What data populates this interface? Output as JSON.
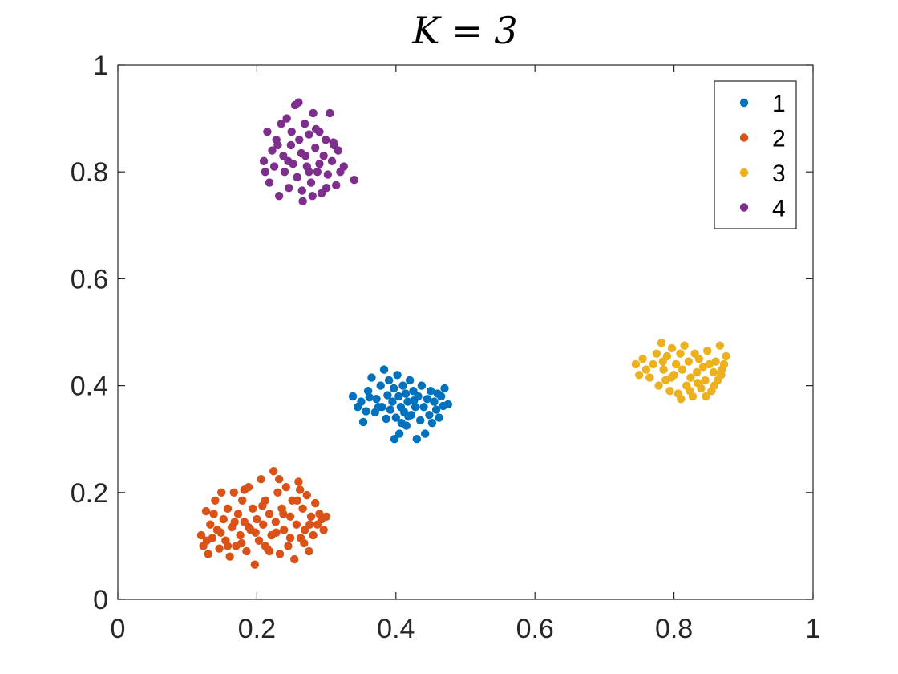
{
  "chart_data": {
    "type": "scatter",
    "title": "K = 3",
    "xlabel": "",
    "ylabel": "",
    "xlim": [
      0,
      1
    ],
    "ylim": [
      0,
      1
    ],
    "x_ticks": [
      "0",
      "0.2",
      "0.4",
      "0.6",
      "0.8",
      "1"
    ],
    "y_ticks": [
      "0",
      "0.2",
      "0.4",
      "0.6",
      "0.8",
      "1"
    ],
    "grid": false,
    "legend_position": "top-right",
    "series": [
      {
        "name": "1",
        "color": "#0072BD",
        "points": [
          [
            0.338,
            0.38
          ],
          [
            0.345,
            0.36
          ],
          [
            0.35,
            0.37
          ],
          [
            0.353,
            0.332
          ],
          [
            0.36,
            0.39
          ],
          [
            0.365,
            0.415
          ],
          [
            0.37,
            0.35
          ],
          [
            0.372,
            0.375
          ],
          [
            0.378,
            0.4
          ],
          [
            0.38,
            0.36
          ],
          [
            0.383,
            0.43
          ],
          [
            0.386,
            0.338
          ],
          [
            0.388,
            0.382
          ],
          [
            0.39,
            0.41
          ],
          [
            0.392,
            0.355
          ],
          [
            0.395,
            0.37
          ],
          [
            0.397,
            0.395
          ],
          [
            0.4,
            0.34
          ],
          [
            0.402,
            0.42
          ],
          [
            0.404,
            0.38
          ],
          [
            0.405,
            0.31
          ],
          [
            0.407,
            0.36
          ],
          [
            0.41,
            0.4
          ],
          [
            0.412,
            0.35
          ],
          [
            0.414,
            0.385
          ],
          [
            0.415,
            0.325
          ],
          [
            0.417,
            0.37
          ],
          [
            0.42,
            0.41
          ],
          [
            0.422,
            0.345
          ],
          [
            0.425,
            0.39
          ],
          [
            0.428,
            0.36
          ],
          [
            0.43,
            0.3
          ],
          [
            0.432,
            0.38
          ],
          [
            0.435,
            0.335
          ],
          [
            0.437,
            0.4
          ],
          [
            0.44,
            0.36
          ],
          [
            0.442,
            0.31
          ],
          [
            0.445,
            0.375
          ],
          [
            0.448,
            0.345
          ],
          [
            0.45,
            0.39
          ],
          [
            0.452,
            0.33
          ],
          [
            0.455,
            0.37
          ],
          [
            0.458,
            0.355
          ],
          [
            0.46,
            0.385
          ],
          [
            0.462,
            0.34
          ],
          [
            0.465,
            0.38
          ],
          [
            0.468,
            0.362
          ],
          [
            0.47,
            0.395
          ],
          [
            0.475,
            0.365
          ],
          [
            0.357,
            0.352
          ],
          [
            0.362,
            0.378
          ],
          [
            0.375,
            0.36
          ],
          [
            0.398,
            0.3
          ],
          [
            0.408,
            0.33
          ],
          [
            0.418,
            0.342
          ],
          [
            0.426,
            0.372
          ]
        ]
      },
      {
        "name": "2",
        "color": "#D95319",
        "points": [
          [
            0.12,
            0.12
          ],
          [
            0.123,
            0.1
          ],
          [
            0.127,
            0.165
          ],
          [
            0.13,
            0.085
          ],
          [
            0.133,
            0.14
          ],
          [
            0.136,
            0.115
          ],
          [
            0.14,
            0.185
          ],
          [
            0.143,
            0.13
          ],
          [
            0.146,
            0.095
          ],
          [
            0.149,
            0.2
          ],
          [
            0.152,
            0.15
          ],
          [
            0.155,
            0.11
          ],
          [
            0.158,
            0.17
          ],
          [
            0.161,
            0.08
          ],
          [
            0.164,
            0.135
          ],
          [
            0.167,
            0.2
          ],
          [
            0.17,
            0.1
          ],
          [
            0.173,
            0.16
          ],
          [
            0.176,
            0.12
          ],
          [
            0.179,
            0.185
          ],
          [
            0.182,
            0.145
          ],
          [
            0.185,
            0.09
          ],
          [
            0.188,
            0.21
          ],
          [
            0.191,
            0.13
          ],
          [
            0.194,
            0.17
          ],
          [
            0.197,
            0.065
          ],
          [
            0.2,
            0.15
          ],
          [
            0.203,
            0.11
          ],
          [
            0.206,
            0.225
          ],
          [
            0.209,
            0.14
          ],
          [
            0.212,
            0.185
          ],
          [
            0.215,
            0.095
          ],
          [
            0.218,
            0.16
          ],
          [
            0.221,
            0.12
          ],
          [
            0.224,
            0.24
          ],
          [
            0.227,
            0.145
          ],
          [
            0.23,
            0.2
          ],
          [
            0.233,
            0.085
          ],
          [
            0.236,
            0.17
          ],
          [
            0.239,
            0.13
          ],
          [
            0.242,
            0.21
          ],
          [
            0.245,
            0.1
          ],
          [
            0.248,
            0.155
          ],
          [
            0.251,
            0.185
          ],
          [
            0.254,
            0.075
          ],
          [
            0.257,
            0.14
          ],
          [
            0.26,
            0.22
          ],
          [
            0.263,
            0.115
          ],
          [
            0.266,
            0.17
          ],
          [
            0.269,
            0.13
          ],
          [
            0.272,
            0.195
          ],
          [
            0.275,
            0.09
          ],
          [
            0.278,
            0.155
          ],
          [
            0.281,
            0.12
          ],
          [
            0.284,
            0.18
          ],
          [
            0.287,
            0.14
          ],
          [
            0.29,
            0.16
          ],
          [
            0.293,
            0.15
          ],
          [
            0.296,
            0.13
          ],
          [
            0.3,
            0.155
          ],
          [
            0.158,
            0.1
          ],
          [
            0.168,
            0.145
          ],
          [
            0.178,
            0.105
          ],
          [
            0.188,
            0.135
          ],
          [
            0.198,
            0.125
          ],
          [
            0.208,
            0.175
          ],
          [
            0.218,
            0.09
          ],
          [
            0.228,
            0.125
          ],
          [
            0.238,
            0.16
          ],
          [
            0.248,
            0.115
          ],
          [
            0.258,
            0.185
          ],
          [
            0.268,
            0.105
          ],
          [
            0.148,
            0.125
          ],
          [
            0.138,
            0.16
          ],
          [
            0.128,
            0.11
          ],
          [
            0.182,
            0.205
          ],
          [
            0.232,
            0.225
          ],
          [
            0.262,
            0.205
          ],
          [
            0.276,
            0.14
          ],
          [
            0.212,
            0.1
          ]
        ]
      },
      {
        "name": "3",
        "color": "#EDB120",
        "points": [
          [
            0.745,
            0.44
          ],
          [
            0.75,
            0.42
          ],
          [
            0.755,
            0.45
          ],
          [
            0.76,
            0.43
          ],
          [
            0.765,
            0.415
          ],
          [
            0.77,
            0.44
          ],
          [
            0.775,
            0.46
          ],
          [
            0.778,
            0.4
          ],
          [
            0.782,
            0.48
          ],
          [
            0.785,
            0.43
          ],
          [
            0.788,
            0.41
          ],
          [
            0.79,
            0.455
          ],
          [
            0.794,
            0.39
          ],
          [
            0.797,
            0.47
          ],
          [
            0.8,
            0.42
          ],
          [
            0.803,
            0.44
          ],
          [
            0.806,
            0.385
          ],
          [
            0.809,
            0.46
          ],
          [
            0.812,
            0.43
          ],
          [
            0.815,
            0.475
          ],
          [
            0.818,
            0.4
          ],
          [
            0.821,
            0.445
          ],
          [
            0.824,
            0.415
          ],
          [
            0.827,
            0.38
          ],
          [
            0.83,
            0.46
          ],
          [
            0.833,
            0.425
          ],
          [
            0.836,
            0.45
          ],
          [
            0.839,
            0.395
          ],
          [
            0.842,
            0.435
          ],
          [
            0.845,
            0.41
          ],
          [
            0.848,
            0.465
          ],
          [
            0.851,
            0.44
          ],
          [
            0.854,
            0.39
          ],
          [
            0.857,
            0.425
          ],
          [
            0.86,
            0.445
          ],
          [
            0.863,
            0.41
          ],
          [
            0.866,
            0.475
          ],
          [
            0.869,
            0.43
          ],
          [
            0.872,
            0.44
          ],
          [
            0.875,
            0.455
          ],
          [
            0.81,
            0.375
          ],
          [
            0.823,
            0.39
          ],
          [
            0.796,
            0.415
          ],
          [
            0.784,
            0.445
          ],
          [
            0.834,
            0.405
          ],
          [
            0.858,
            0.4
          ],
          [
            0.846,
            0.38
          ],
          [
            0.868,
            0.42
          ]
        ]
      },
      {
        "name": "4",
        "color": "#7E2F8E",
        "points": [
          [
            0.21,
            0.82
          ],
          [
            0.212,
            0.8
          ],
          [
            0.215,
            0.875
          ],
          [
            0.218,
            0.78
          ],
          [
            0.222,
            0.84
          ],
          [
            0.225,
            0.81
          ],
          [
            0.228,
            0.86
          ],
          [
            0.232,
            0.755
          ],
          [
            0.235,
            0.89
          ],
          [
            0.238,
            0.83
          ],
          [
            0.24,
            0.8
          ],
          [
            0.243,
            0.9
          ],
          [
            0.246,
            0.77
          ],
          [
            0.249,
            0.85
          ],
          [
            0.252,
            0.815
          ],
          [
            0.255,
            0.925
          ],
          [
            0.258,
            0.79
          ],
          [
            0.261,
            0.86
          ],
          [
            0.264,
            0.835
          ],
          [
            0.266,
            0.745
          ],
          [
            0.269,
            0.89
          ],
          [
            0.272,
            0.81
          ],
          [
            0.275,
            0.87
          ],
          [
            0.278,
            0.78
          ],
          [
            0.281,
            0.91
          ],
          [
            0.284,
            0.845
          ],
          [
            0.287,
            0.8
          ],
          [
            0.29,
            0.875
          ],
          [
            0.293,
            0.76
          ],
          [
            0.296,
            0.83
          ],
          [
            0.299,
            0.86
          ],
          [
            0.302,
            0.795
          ],
          [
            0.305,
            0.91
          ],
          [
            0.308,
            0.82
          ],
          [
            0.311,
            0.85
          ],
          [
            0.314,
            0.775
          ],
          [
            0.317,
            0.84
          ],
          [
            0.32,
            0.8
          ],
          [
            0.325,
            0.81
          ],
          [
            0.34,
            0.785
          ],
          [
            0.23,
            0.85
          ],
          [
            0.245,
            0.82
          ],
          [
            0.26,
            0.93
          ],
          [
            0.27,
            0.83
          ],
          [
            0.28,
            0.755
          ],
          [
            0.29,
            0.815
          ],
          [
            0.3,
            0.77
          ],
          [
            0.31,
            0.855
          ],
          [
            0.265,
            0.765
          ],
          [
            0.275,
            0.8
          ],
          [
            0.285,
            0.88
          ],
          [
            0.25,
            0.875
          ]
        ]
      }
    ]
  }
}
